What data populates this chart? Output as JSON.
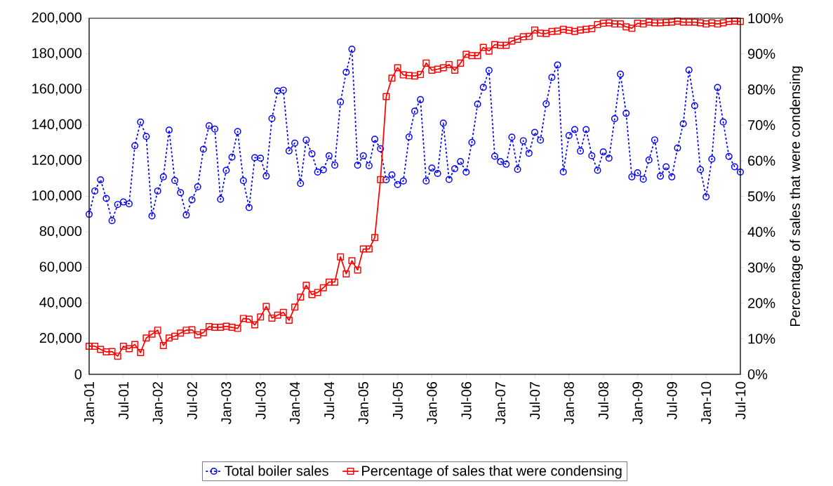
{
  "chart_data": {
    "type": "line",
    "x": [
      "2001-01",
      "2001-02",
      "2001-03",
      "2001-04",
      "2001-05",
      "2001-06",
      "2001-07",
      "2001-08",
      "2001-09",
      "2001-10",
      "2001-11",
      "2001-12",
      "2002-01",
      "2002-02",
      "2002-03",
      "2002-04",
      "2002-05",
      "2002-06",
      "2002-07",
      "2002-08",
      "2002-09",
      "2002-10",
      "2002-11",
      "2002-12",
      "2003-01",
      "2003-02",
      "2003-03",
      "2003-04",
      "2003-05",
      "2003-06",
      "2003-07",
      "2003-08",
      "2003-09",
      "2003-10",
      "2003-11",
      "2003-12",
      "2004-01",
      "2004-02",
      "2004-03",
      "2004-04",
      "2004-05",
      "2004-06",
      "2004-07",
      "2004-08",
      "2004-09",
      "2004-10",
      "2004-11",
      "2004-12",
      "2005-01",
      "2005-02",
      "2005-03",
      "2005-04",
      "2005-05",
      "2005-06",
      "2005-07",
      "2005-08",
      "2005-09",
      "2005-10",
      "2005-11",
      "2005-12",
      "2006-01",
      "2006-02",
      "2006-03",
      "2006-04",
      "2006-05",
      "2006-06",
      "2006-07",
      "2006-08",
      "2006-09",
      "2006-10",
      "2006-11",
      "2006-12",
      "2007-01",
      "2007-02",
      "2007-03",
      "2007-04",
      "2007-05",
      "2007-06",
      "2007-07",
      "2007-08",
      "2007-09",
      "2007-10",
      "2007-11",
      "2007-12",
      "2008-01",
      "2008-02",
      "2008-03",
      "2008-04",
      "2008-05",
      "2008-06",
      "2008-07",
      "2008-08",
      "2008-09",
      "2008-10",
      "2008-11",
      "2008-12",
      "2009-01",
      "2009-02",
      "2009-03",
      "2009-04",
      "2009-05",
      "2009-06",
      "2009-07",
      "2009-08",
      "2009-09",
      "2009-10",
      "2009-11",
      "2009-12",
      "2010-01",
      "2010-02",
      "2010-03",
      "2010-04",
      "2010-05",
      "2010-06",
      "2010-07"
    ],
    "series": [
      {
        "name": "Total boiler sales",
        "color": "#0000ff",
        "marker": "circle",
        "line_style": "dotted",
        "values": [
          89900,
          103000,
          109300,
          98800,
          86300,
          95400,
          96800,
          95800,
          128400,
          141700,
          133600,
          89000,
          103000,
          110900,
          137200,
          108900,
          102100,
          89500,
          98000,
          105300,
          126400,
          139600,
          137800,
          98300,
          114600,
          122000,
          136400,
          108800,
          93700,
          121700,
          121400,
          111400,
          143700,
          159200,
          159600,
          125500,
          129900,
          107200,
          131600,
          123900,
          113600,
          114900,
          122800,
          117500,
          153000,
          169700,
          182600,
          117500,
          122800,
          117200,
          132000,
          126700,
          109300,
          112000,
          106600,
          108600,
          133300,
          147800,
          154300,
          108600,
          115900,
          112800,
          141100,
          109500,
          115500,
          119500,
          113600,
          130300,
          151800,
          161200,
          170700,
          122500,
          119500,
          118000,
          133200,
          115100,
          131200,
          124200,
          135900,
          131600,
          152000,
          166800,
          173800,
          113700,
          134100,
          137500,
          125400,
          137500,
          122800,
          114600,
          124900,
          121400,
          143600,
          168600,
          146600,
          110900,
          113200,
          109600,
          120400,
          131700,
          111300,
          116600,
          110900,
          127100,
          140700,
          170900,
          150900,
          115000,
          99700,
          120900,
          161100,
          141700,
          122400,
          116600,
          113600
        ]
      },
      {
        "name": "Percentage of sales that were condensing",
        "color": "#ff0000",
        "marker": "square",
        "line_style": "solid",
        "axis": "y2",
        "values": [
          7.9,
          7.9,
          7.0,
          6.3,
          6.4,
          5.1,
          7.9,
          7.2,
          8.4,
          6.1,
          10.2,
          11.3,
          12.4,
          8.1,
          10.2,
          10.7,
          11.6,
          12.4,
          12.5,
          11.1,
          11.7,
          13.4,
          13.2,
          13.2,
          13.5,
          13.2,
          12.9,
          15.7,
          15.5,
          13.9,
          16.1,
          19.1,
          15.8,
          16.6,
          17.4,
          15.2,
          18.9,
          21.7,
          25.0,
          22.4,
          23.0,
          24.3,
          25.9,
          25.9,
          33.0,
          28.2,
          31.9,
          29.3,
          35.2,
          35.2,
          38.4,
          54.7,
          78.0,
          83.2,
          86.1,
          84.1,
          83.9,
          83.8,
          84.2,
          87.4,
          85.4,
          85.7,
          86.1,
          87.0,
          85.4,
          87.4,
          89.9,
          89.5,
          89.5,
          91.8,
          90.8,
          92.6,
          92.4,
          92.4,
          93.6,
          94.1,
          94.8,
          94.9,
          96.7,
          95.8,
          95.7,
          96.3,
          96.4,
          96.9,
          96.6,
          96.3,
          96.7,
          96.9,
          97.1,
          98.2,
          98.6,
          98.7,
          98.4,
          98.4,
          97.6,
          97.2,
          98.6,
          98.4,
          98.9,
          98.7,
          98.7,
          98.8,
          98.9,
          99.2,
          98.9,
          98.9,
          98.9,
          98.7,
          98.4,
          98.7,
          98.4,
          98.7,
          99.1,
          99.2,
          99.1
        ]
      }
    ],
    "xlim": [
      "2001-01",
      "2010-07"
    ],
    "xticks": [
      {
        "value": "2001-01",
        "label": "Jan-01"
      },
      {
        "value": "2001-07",
        "label": "Jul-01"
      },
      {
        "value": "2002-01",
        "label": "Jan-02"
      },
      {
        "value": "2002-07",
        "label": "Jul-02"
      },
      {
        "value": "2003-01",
        "label": "Jan-03"
      },
      {
        "value": "2003-07",
        "label": "Jul-03"
      },
      {
        "value": "2004-01",
        "label": "Jan-04"
      },
      {
        "value": "2004-07",
        "label": "Jul-04"
      },
      {
        "value": "2005-01",
        "label": "Jan-05"
      },
      {
        "value": "2005-07",
        "label": "Jul-05"
      },
      {
        "value": "2006-01",
        "label": "Jan-06"
      },
      {
        "value": "2006-07",
        "label": "Jul-06"
      },
      {
        "value": "2007-01",
        "label": "Jan-07"
      },
      {
        "value": "2007-07",
        "label": "Jul-07"
      },
      {
        "value": "2008-01",
        "label": "Jan-08"
      },
      {
        "value": "2008-07",
        "label": "Jul-08"
      },
      {
        "value": "2009-01",
        "label": "Jan-09"
      },
      {
        "value": "2009-07",
        "label": "Jul-09"
      },
      {
        "value": "2010-01",
        "label": "Jan-10"
      },
      {
        "value": "2010-07",
        "label": "Jul-10"
      }
    ],
    "ylim": [
      0,
      200000
    ],
    "yticks": [
      0,
      {
        "value": 20000,
        "label": "20,000"
      },
      {
        "value": 40000,
        "label": "40,000"
      },
      {
        "value": 60000,
        "label": "60,000"
      },
      {
        "value": 80000,
        "label": "80,000"
      },
      {
        "value": 100000,
        "label": "100,000"
      },
      {
        "value": 120000,
        "label": "120,000"
      },
      {
        "value": 140000,
        "label": "140,000"
      },
      {
        "value": 160000,
        "label": "160,000"
      },
      {
        "value": 180000,
        "label": "180,000"
      },
      {
        "value": 200000,
        "label": "200,000"
      }
    ],
    "y2lim": [
      0,
      100
    ],
    "y2ticks": [
      {
        "value": 0,
        "label": "0%"
      },
      {
        "value": 10,
        "label": "10%"
      },
      {
        "value": 20,
        "label": "20%"
      },
      {
        "value": 30,
        "label": "30%"
      },
      {
        "value": 40,
        "label": "40%"
      },
      {
        "value": 50,
        "label": "50%"
      },
      {
        "value": 60,
        "label": "60%"
      },
      {
        "value": 70,
        "label": "70%"
      },
      {
        "value": 80,
        "label": "80%"
      },
      {
        "value": 90,
        "label": "90%"
      },
      {
        "value": 100,
        "label": "100%"
      }
    ],
    "y2label": "Percentage of sales that were condensing",
    "legend": "bottom"
  }
}
